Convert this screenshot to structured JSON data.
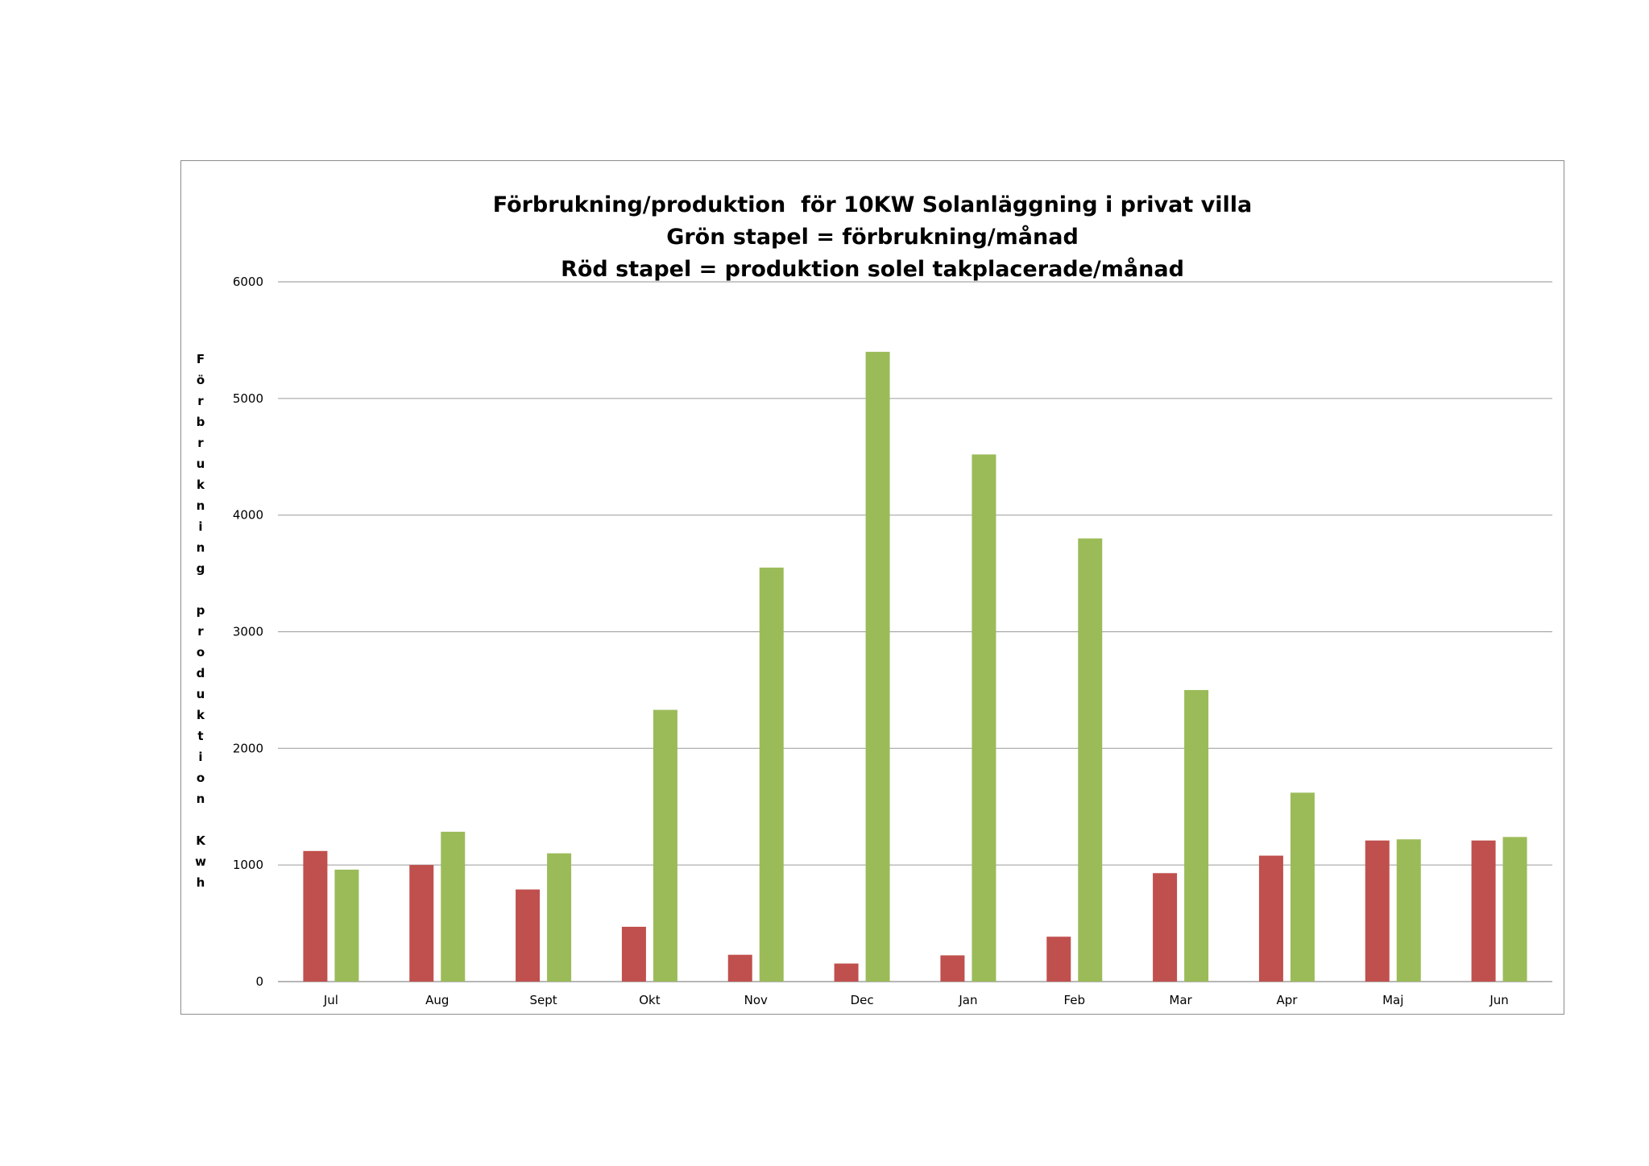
{
  "chart_data": {
    "type": "bar",
    "title": "Förbrukning/produktion  för 10KW Solanläggning i privat villa\nGrön stapel = förbrukning/månad\nRöd stapel = produktion solel takplacerade/månad",
    "title_lines": [
      "Förbrukning/produktion  för 10KW Solanläggning i privat villa",
      "Grön stapel = förbrukning/månad",
      "Röd stapel = produktion solel takplacerade/månad"
    ],
    "xlabel": "",
    "ylabel": "Förbrukning produktion Kwh",
    "categories": [
      "Jul",
      "Aug",
      "Sept",
      "Okt",
      "Nov",
      "Dec",
      "Jan",
      "Feb",
      "Mar",
      "Apr",
      "Maj",
      "Jun"
    ],
    "series": [
      {
        "color": "#c0504d",
        "values": [
          1120,
          1000,
          790,
          470,
          230,
          155,
          225,
          385,
          930,
          1080,
          1210,
          1210
        ]
      },
      {
        "color": "#9bbb59",
        "values": [
          960,
          1285,
          1100,
          2330,
          3550,
          5400,
          4520,
          3800,
          2500,
          1620,
          1220,
          1240
        ]
      }
    ],
    "ylim": [
      0,
      6000
    ],
    "yticks": [
      0,
      1000,
      2000,
      3000,
      4000,
      5000,
      6000
    ],
    "grid": true,
    "legend": "none"
  }
}
